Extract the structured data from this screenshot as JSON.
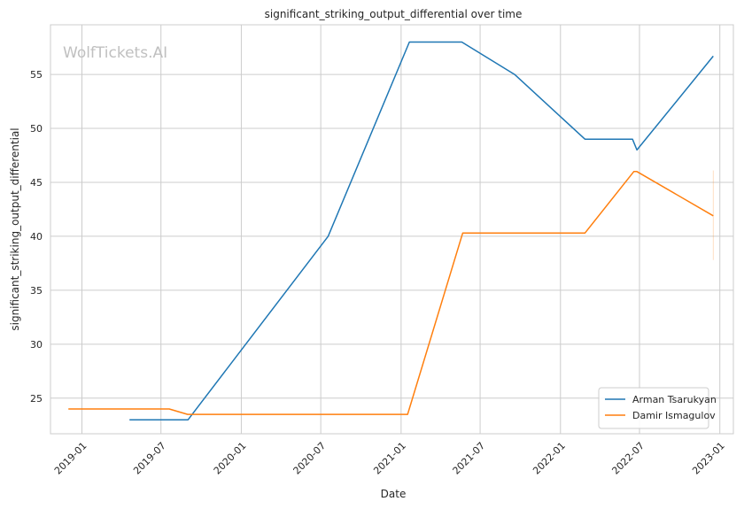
{
  "chart_data": {
    "type": "line",
    "title": "significant_striking_output_differential over time",
    "xlabel": "Date",
    "ylabel": "significant_striking_output_differential",
    "watermark": "WolfTickets.AI",
    "legend_position": "lower right",
    "grid": true,
    "xlim": [
      "2018-10-21",
      "2023-02-01"
    ],
    "ylim": [
      21.7,
      59.6
    ],
    "x_ticks": [
      "2019-01",
      "2019-07",
      "2020-01",
      "2020-07",
      "2021-01",
      "2021-07",
      "2022-01",
      "2022-07",
      "2023-01"
    ],
    "y_ticks": [
      25,
      30,
      35,
      40,
      45,
      50,
      55
    ],
    "series": [
      {
        "name": "Arman Tsarukyan",
        "color": "#1f77b4",
        "points": [
          [
            "2019-04-20",
            23.0
          ],
          [
            "2019-09-01",
            23.0
          ],
          [
            "2020-07-18",
            40.0
          ],
          [
            "2021-01-20",
            58.0
          ],
          [
            "2021-05-20",
            58.0
          ],
          [
            "2021-09-18",
            55.0
          ],
          [
            "2022-02-26",
            49.0
          ],
          [
            "2022-06-15",
            49.0
          ],
          [
            "2022-06-25",
            48.0
          ],
          [
            "2022-12-17",
            56.7
          ]
        ]
      },
      {
        "name": "Damir Ismagulov",
        "color": "#ff7f0e",
        "points": [
          [
            "2018-12-01",
            24.0
          ],
          [
            "2019-07-20",
            24.0
          ],
          [
            "2019-08-31",
            23.5
          ],
          [
            "2021-01-16",
            23.5
          ],
          [
            "2021-05-22",
            40.3
          ],
          [
            "2022-02-26",
            40.3
          ],
          [
            "2022-06-18",
            46.0
          ],
          [
            "2022-06-25",
            46.0
          ],
          [
            "2022-12-17",
            41.9
          ]
        ]
      }
    ],
    "error_band": {
      "series": "Damir Ismagulov",
      "x": "2022-12-17",
      "low": 37.8,
      "high": 46.1
    }
  }
}
